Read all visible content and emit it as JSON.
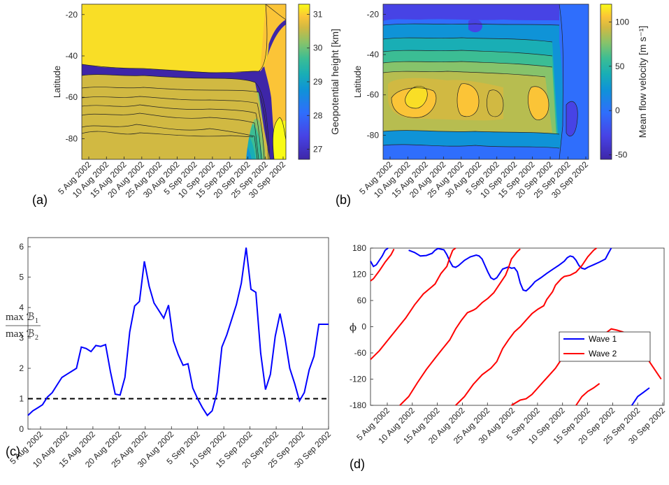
{
  "chart_data": [
    {
      "panel": "(a)",
      "type": "heatmap",
      "ylabel": "Latitude",
      "yticks": [
        -20,
        -40,
        -60,
        -80
      ],
      "ylim": [
        -90,
        -15
      ],
      "xticks": [
        "5 Aug 2002",
        "10 Aug 2002",
        "15 Aug 2002",
        "20 Aug 2002",
        "25 Aug 2002",
        "30 Aug 2002",
        "5 Sep  2002",
        "10 Sep 2002",
        "15 Sep 2002",
        "20 Sep  2002",
        "25 Sep  2002",
        "30 Sep  2002"
      ],
      "colorbar": {
        "label": "Geopotential height [km]",
        "ticks": [
          31,
          30,
          29,
          28,
          27
        ],
        "range": [
          26.7,
          31.3
        ]
      },
      "colors": [
        "#3e26a8",
        "#4743e5",
        "#2f6efc",
        "#0f93d7",
        "#19aeb5",
        "#3bbd94",
        "#86c36b",
        "#d1b942",
        "#fbc437",
        "#f9de26",
        "#f9fb15"
      ]
    },
    {
      "panel": "(b)",
      "type": "heatmap",
      "ylabel": "Latitude",
      "yticks": [
        -20,
        -40,
        -60,
        -80
      ],
      "ylim": [
        -92,
        -15
      ],
      "xticks": [
        "5 Aug 2002",
        "10 Aug 2002",
        "15 Aug 2002",
        "20 Aug 2002",
        "25 Aug 2002",
        "30 Aug 2002",
        "5 Sep  2002",
        "10 Sep 2002",
        "15 Sep 2002",
        "20 Sep 2002",
        "25 Sep 2002",
        "30 Sep 2002"
      ],
      "colorbar": {
        "label": "Mean flow  velocity [m s⁻¹]",
        "ticks": [
          100,
          50,
          0,
          -50
        ],
        "range": [
          -55,
          120
        ]
      }
    },
    {
      "panel": "(c)",
      "type": "line",
      "ylabel": "max B₁ / max B₂",
      "ylim": [
        0,
        6.3
      ],
      "yticks": [
        0,
        1,
        2,
        3,
        4,
        5,
        6
      ],
      "xticks": [
        "5 Aug 2002",
        "10 Aug 2002",
        "15 Aug 2002",
        "20 Aug 2002",
        "25 Aug 2002",
        "30 Aug 2002",
        "5 Sep  2002",
        "10 Sep  2002",
        "15 Sep  2002",
        "20 Sep  2002",
        "25 Sep  2002",
        "30 Sep  2002"
      ],
      "x": [
        0,
        1,
        2,
        3,
        4,
        5,
        6,
        7,
        8,
        9,
        10,
        11,
        12,
        13,
        14,
        15,
        16,
        17,
        18,
        19,
        20,
        21,
        22,
        23,
        24,
        25,
        26,
        27,
        28,
        29,
        30,
        31,
        32,
        33,
        34,
        35,
        36,
        37,
        38,
        39,
        40,
        41,
        42,
        43,
        44,
        45,
        46,
        47,
        48,
        49,
        50,
        51,
        52,
        53,
        54,
        55,
        56,
        57,
        58,
        59,
        60,
        61,
        62
      ],
      "values": [
        0.45,
        0.6,
        0.7,
        0.8,
        1.05,
        1.2,
        1.45,
        1.7,
        1.8,
        1.9,
        2.0,
        2.7,
        2.65,
        2.55,
        2.75,
        2.72,
        2.78,
        1.9,
        1.15,
        1.12,
        1.7,
        3.2,
        4.05,
        4.2,
        5.52,
        4.7,
        4.15,
        3.9,
        3.65,
        4.08,
        2.9,
        2.45,
        2.1,
        2.15,
        1.35,
        1.0,
        0.7,
        0.45,
        0.6,
        1.2,
        2.7,
        3.1,
        3.6,
        4.1,
        4.8,
        5.97,
        4.6,
        4.5,
        2.5,
        1.3,
        1.8,
        3.05,
        3.8,
        3.0,
        2.0,
        1.5,
        0.93,
        1.2,
        1.95,
        2.4,
        3.45,
        3.45,
        3.45
      ],
      "hline": 1,
      "series_color": "#0000ff"
    },
    {
      "panel": "(d)",
      "type": "line",
      "ylabel": "ϕ",
      "ylim": [
        -180,
        180
      ],
      "yticks": [
        180,
        120,
        60,
        0,
        -60,
        -120,
        -180
      ],
      "xticks": [
        "5 Aug 2002",
        "10 Aug 2002",
        "15 Aug 2002",
        "20 Aug 2002",
        "25 Aug 2002",
        "30 Aug 2002",
        "5 Sep  2002",
        "10 Sep  2002",
        "15 Sep  2002",
        "20 Sep  2002",
        "25 Sep  2002",
        "30 Sep  2002"
      ],
      "series": [
        {
          "name": "Wave 1",
          "color": "#0000ff",
          "segments": [
            [
              [
                0,
                150
              ],
              [
                1,
                138
              ],
              [
                2,
                142
              ],
              [
                3,
                152
              ],
              [
                4,
                162
              ],
              [
                5,
                175
              ],
              [
                6,
                180
              ]
            ],
            [
              [
                13,
                175
              ],
              [
                15,
                170
              ],
              [
                17,
                162
              ],
              [
                19,
                163
              ],
              [
                21,
                168
              ],
              [
                22,
                175
              ],
              [
                23,
                179
              ],
              [
                25,
                176
              ],
              [
                26,
                165
              ],
              [
                27,
                150
              ],
              [
                28,
                138
              ],
              [
                29,
                136
              ],
              [
                30,
                140
              ],
              [
                32,
                152
              ],
              [
                34,
                160
              ],
              [
                36,
                164
              ],
              [
                37,
                162
              ],
              [
                38,
                155
              ],
              [
                39,
                140
              ],
              [
                40,
                125
              ],
              [
                41,
                112
              ],
              [
                42,
                108
              ],
              [
                43,
                112
              ],
              [
                44,
                122
              ],
              [
                45,
                132
              ],
              [
                47,
                137
              ],
              [
                48,
                134
              ],
              [
                49,
                135
              ],
              [
                50,
                126
              ],
              [
                51,
                100
              ],
              [
                52,
                84
              ],
              [
                53,
                82
              ],
              [
                54,
                88
              ],
              [
                55,
                95
              ],
              [
                56,
                103
              ],
              [
                58,
                112
              ],
              [
                60,
                122
              ],
              [
                62,
                131
              ],
              [
                64,
                140
              ],
              [
                66,
                150
              ],
              [
                67,
                158
              ],
              [
                68,
                162
              ],
              [
                69,
                160
              ],
              [
                70,
                152
              ],
              [
                71,
                140
              ],
              [
                72,
                134
              ],
              [
                73,
                132
              ],
              [
                74,
                136
              ],
              [
                76,
                142
              ],
              [
                78,
                148
              ],
              [
                80,
                155
              ],
              [
                81,
                168
              ],
              [
                82,
                180
              ]
            ],
            [
              [
                89,
                -180
              ],
              [
                90,
                -170
              ],
              [
                91,
                -160
              ],
              [
                93,
                -150
              ],
              [
                95,
                -140
              ]
            ]
          ]
        },
        {
          "name": "Wave 2",
          "color": "#ff0000",
          "segments": [
            [
              [
                0,
                105
              ],
              [
                1,
                110
              ],
              [
                3,
                128
              ],
              [
                5,
                148
              ],
              [
                7,
                165
              ],
              [
                8,
                178
              ]
            ],
            [
              [
                0,
                -75
              ],
              [
                3,
                -55
              ],
              [
                6,
                -30
              ],
              [
                9,
                -5
              ],
              [
                12,
                20
              ],
              [
                15,
                50
              ],
              [
                18,
                75
              ],
              [
                21,
                92
              ],
              [
                22,
                98
              ],
              [
                23,
                110
              ],
              [
                24,
                122
              ],
              [
                26,
                138
              ],
              [
                27,
                158
              ],
              [
                28,
                175
              ],
              [
                29,
                180
              ]
            ],
            [
              [
                10,
                -180
              ],
              [
                13,
                -160
              ],
              [
                16,
                -128
              ],
              [
                19,
                -98
              ],
              [
                22,
                -72
              ],
              [
                24,
                -55
              ],
              [
                27,
                -30
              ],
              [
                29,
                -5
              ],
              [
                31,
                15
              ],
              [
                33,
                32
              ],
              [
                35,
                38
              ],
              [
                36,
                42
              ],
              [
                38,
                55
              ],
              [
                40,
                65
              ],
              [
                42,
                78
              ],
              [
                44,
                98
              ],
              [
                46,
                118
              ],
              [
                47,
                135
              ],
              [
                48,
                155
              ],
              [
                50,
                172
              ],
              [
                51,
                178
              ]
            ],
            [
              [
                29,
                -180
              ],
              [
                32,
                -160
              ],
              [
                35,
                -132
              ],
              [
                38,
                -110
              ],
              [
                41,
                -95
              ],
              [
                43,
                -80
              ],
              [
                45,
                -50
              ],
              [
                47,
                -30
              ],
              [
                49,
                -12
              ],
              [
                51,
                0
              ],
              [
                53,
                15
              ],
              [
                55,
                30
              ],
              [
                57,
                40
              ],
              [
                59,
                48
              ],
              [
                60,
                62
              ],
              [
                62,
                80
              ],
              [
                63,
                95
              ],
              [
                65,
                110
              ],
              [
                66,
                115
              ],
              [
                68,
                118
              ],
              [
                70,
                125
              ],
              [
                72,
                140
              ],
              [
                74,
                160
              ],
              [
                76,
                175
              ],
              [
                77,
                180
              ]
            ],
            [
              [
                48,
                -180
              ],
              [
                51,
                -168
              ],
              [
                53,
                -165
              ],
              [
                55,
                -155
              ],
              [
                57,
                -140
              ],
              [
                59,
                -125
              ],
              [
                61,
                -110
              ],
              [
                63,
                -95
              ],
              [
                65,
                -75
              ],
              [
                67,
                -58
              ],
              [
                69,
                -50
              ],
              [
                71,
                -45
              ],
              [
                73,
                -38
              ],
              [
                75,
                -35
              ],
              [
                77,
                -25
              ],
              [
                79,
                -20
              ],
              [
                81,
                -10
              ],
              [
                82,
                -5
              ],
              [
                84,
                -8
              ],
              [
                86,
                -12
              ],
              [
                88,
                -20
              ],
              [
                90,
                -35
              ],
              [
                92,
                -55
              ],
              [
                94,
                -70
              ],
              [
                96,
                -90
              ],
              [
                98,
                -110
              ],
              [
                99,
                -120
              ]
            ],
            [
              [
                70,
                -180
              ],
              [
                72,
                -160
              ],
              [
                74,
                -148
              ],
              [
                76,
                -140
              ],
              [
                78,
                -130
              ]
            ]
          ]
        }
      ]
    }
  ],
  "panel_labels": [
    "(a)",
    "(b)",
    "(c)",
    "(d)"
  ]
}
